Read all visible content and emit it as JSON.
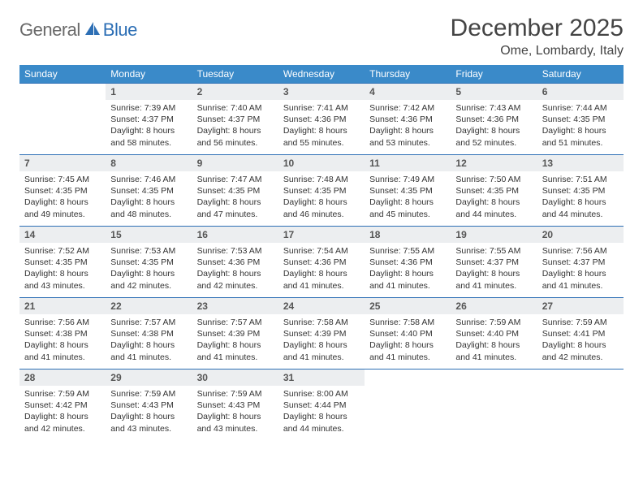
{
  "logo": {
    "general": "General",
    "blue": "Blue"
  },
  "title": "December 2025",
  "location": "Ome, Lombardy, Italy",
  "colors": {
    "header_bg": "#3a8ac9",
    "header_text": "#ffffff",
    "border": "#2d6fb5",
    "daynum_bg": "#eceef0",
    "logo_gray": "#6a6a6a",
    "logo_blue": "#2d6fb5"
  },
  "weekdays": [
    "Sunday",
    "Monday",
    "Tuesday",
    "Wednesday",
    "Thursday",
    "Friday",
    "Saturday"
  ],
  "weeks": [
    [
      {
        "day": "",
        "sunrise": "",
        "sunset": "",
        "daylight": ""
      },
      {
        "day": "1",
        "sunrise": "Sunrise: 7:39 AM",
        "sunset": "Sunset: 4:37 PM",
        "daylight": "Daylight: 8 hours and 58 minutes."
      },
      {
        "day": "2",
        "sunrise": "Sunrise: 7:40 AM",
        "sunset": "Sunset: 4:37 PM",
        "daylight": "Daylight: 8 hours and 56 minutes."
      },
      {
        "day": "3",
        "sunrise": "Sunrise: 7:41 AM",
        "sunset": "Sunset: 4:36 PM",
        "daylight": "Daylight: 8 hours and 55 minutes."
      },
      {
        "day": "4",
        "sunrise": "Sunrise: 7:42 AM",
        "sunset": "Sunset: 4:36 PM",
        "daylight": "Daylight: 8 hours and 53 minutes."
      },
      {
        "day": "5",
        "sunrise": "Sunrise: 7:43 AM",
        "sunset": "Sunset: 4:36 PM",
        "daylight": "Daylight: 8 hours and 52 minutes."
      },
      {
        "day": "6",
        "sunrise": "Sunrise: 7:44 AM",
        "sunset": "Sunset: 4:35 PM",
        "daylight": "Daylight: 8 hours and 51 minutes."
      }
    ],
    [
      {
        "day": "7",
        "sunrise": "Sunrise: 7:45 AM",
        "sunset": "Sunset: 4:35 PM",
        "daylight": "Daylight: 8 hours and 49 minutes."
      },
      {
        "day": "8",
        "sunrise": "Sunrise: 7:46 AM",
        "sunset": "Sunset: 4:35 PM",
        "daylight": "Daylight: 8 hours and 48 minutes."
      },
      {
        "day": "9",
        "sunrise": "Sunrise: 7:47 AM",
        "sunset": "Sunset: 4:35 PM",
        "daylight": "Daylight: 8 hours and 47 minutes."
      },
      {
        "day": "10",
        "sunrise": "Sunrise: 7:48 AM",
        "sunset": "Sunset: 4:35 PM",
        "daylight": "Daylight: 8 hours and 46 minutes."
      },
      {
        "day": "11",
        "sunrise": "Sunrise: 7:49 AM",
        "sunset": "Sunset: 4:35 PM",
        "daylight": "Daylight: 8 hours and 45 minutes."
      },
      {
        "day": "12",
        "sunrise": "Sunrise: 7:50 AM",
        "sunset": "Sunset: 4:35 PM",
        "daylight": "Daylight: 8 hours and 44 minutes."
      },
      {
        "day": "13",
        "sunrise": "Sunrise: 7:51 AM",
        "sunset": "Sunset: 4:35 PM",
        "daylight": "Daylight: 8 hours and 44 minutes."
      }
    ],
    [
      {
        "day": "14",
        "sunrise": "Sunrise: 7:52 AM",
        "sunset": "Sunset: 4:35 PM",
        "daylight": "Daylight: 8 hours and 43 minutes."
      },
      {
        "day": "15",
        "sunrise": "Sunrise: 7:53 AM",
        "sunset": "Sunset: 4:35 PM",
        "daylight": "Daylight: 8 hours and 42 minutes."
      },
      {
        "day": "16",
        "sunrise": "Sunrise: 7:53 AM",
        "sunset": "Sunset: 4:36 PM",
        "daylight": "Daylight: 8 hours and 42 minutes."
      },
      {
        "day": "17",
        "sunrise": "Sunrise: 7:54 AM",
        "sunset": "Sunset: 4:36 PM",
        "daylight": "Daylight: 8 hours and 41 minutes."
      },
      {
        "day": "18",
        "sunrise": "Sunrise: 7:55 AM",
        "sunset": "Sunset: 4:36 PM",
        "daylight": "Daylight: 8 hours and 41 minutes."
      },
      {
        "day": "19",
        "sunrise": "Sunrise: 7:55 AM",
        "sunset": "Sunset: 4:37 PM",
        "daylight": "Daylight: 8 hours and 41 minutes."
      },
      {
        "day": "20",
        "sunrise": "Sunrise: 7:56 AM",
        "sunset": "Sunset: 4:37 PM",
        "daylight": "Daylight: 8 hours and 41 minutes."
      }
    ],
    [
      {
        "day": "21",
        "sunrise": "Sunrise: 7:56 AM",
        "sunset": "Sunset: 4:38 PM",
        "daylight": "Daylight: 8 hours and 41 minutes."
      },
      {
        "day": "22",
        "sunrise": "Sunrise: 7:57 AM",
        "sunset": "Sunset: 4:38 PM",
        "daylight": "Daylight: 8 hours and 41 minutes."
      },
      {
        "day": "23",
        "sunrise": "Sunrise: 7:57 AM",
        "sunset": "Sunset: 4:39 PM",
        "daylight": "Daylight: 8 hours and 41 minutes."
      },
      {
        "day": "24",
        "sunrise": "Sunrise: 7:58 AM",
        "sunset": "Sunset: 4:39 PM",
        "daylight": "Daylight: 8 hours and 41 minutes."
      },
      {
        "day": "25",
        "sunrise": "Sunrise: 7:58 AM",
        "sunset": "Sunset: 4:40 PM",
        "daylight": "Daylight: 8 hours and 41 minutes."
      },
      {
        "day": "26",
        "sunrise": "Sunrise: 7:59 AM",
        "sunset": "Sunset: 4:40 PM",
        "daylight": "Daylight: 8 hours and 41 minutes."
      },
      {
        "day": "27",
        "sunrise": "Sunrise: 7:59 AM",
        "sunset": "Sunset: 4:41 PM",
        "daylight": "Daylight: 8 hours and 42 minutes."
      }
    ],
    [
      {
        "day": "28",
        "sunrise": "Sunrise: 7:59 AM",
        "sunset": "Sunset: 4:42 PM",
        "daylight": "Daylight: 8 hours and 42 minutes."
      },
      {
        "day": "29",
        "sunrise": "Sunrise: 7:59 AM",
        "sunset": "Sunset: 4:43 PM",
        "daylight": "Daylight: 8 hours and 43 minutes."
      },
      {
        "day": "30",
        "sunrise": "Sunrise: 7:59 AM",
        "sunset": "Sunset: 4:43 PM",
        "daylight": "Daylight: 8 hours and 43 minutes."
      },
      {
        "day": "31",
        "sunrise": "Sunrise: 8:00 AM",
        "sunset": "Sunset: 4:44 PM",
        "daylight": "Daylight: 8 hours and 44 minutes."
      },
      {
        "day": "",
        "sunrise": "",
        "sunset": "",
        "daylight": ""
      },
      {
        "day": "",
        "sunrise": "",
        "sunset": "",
        "daylight": ""
      },
      {
        "day": "",
        "sunrise": "",
        "sunset": "",
        "daylight": ""
      }
    ]
  ]
}
